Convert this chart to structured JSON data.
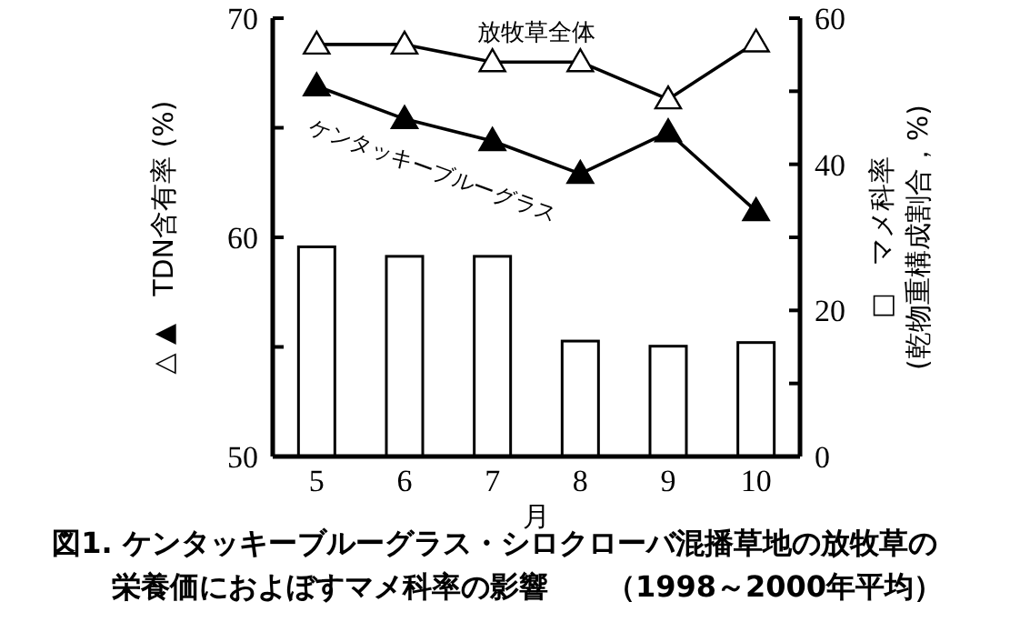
{
  "chart_data": {
    "type": "bar",
    "annotations": [
      "図1. ケンタッキーブルーグラス・シロクローバ混播草地の放牧草の",
      "栄養価におよぼすマメ科率の影響　　（1998～2000年平均）"
    ],
    "xlabel": "月",
    "ylabel": "△ ▲　TDN含有率 (%)",
    "y2label": "□　マメ科率\n(乾物重構成割合，%)",
    "categories": [
      "5",
      "6",
      "7",
      "8",
      "9",
      "10"
    ],
    "ylim": [
      50,
      70
    ],
    "yticks": [
      50,
      {
        "value": 55,
        "label": null
      },
      60,
      {
        "value": 65,
        "label": null
      },
      70
    ],
    "y2lim": [
      0,
      60
    ],
    "y2ticks": [
      0,
      {
        "value": 10,
        "label": null
      },
      20,
      {
        "value": 30,
        "label": null
      },
      40,
      {
        "value": 50,
        "label": null
      },
      60
    ],
    "grid": false,
    "marker": "triangle",
    "line_style": "solid",
    "series": [
      {
        "axis": "y2",
        "color": "#ffffff",
        "values": [
          28.7,
          27.4,
          27.4,
          15.8,
          15.1,
          15.6
        ]
      },
      {
        "type": "line",
        "name": "放牧草全体",
        "color": "#ffffff",
        "values": [
          68.8,
          68.8,
          68.0,
          68.0,
          66.3,
          68.9
        ]
      },
      {
        "type": "line",
        "name": "ケンタッキーブルーグラス",
        "color": "#000000",
        "values": [
          66.9,
          65.4,
          64.4,
          62.9,
          64.8,
          61.2
        ]
      }
    ]
  }
}
